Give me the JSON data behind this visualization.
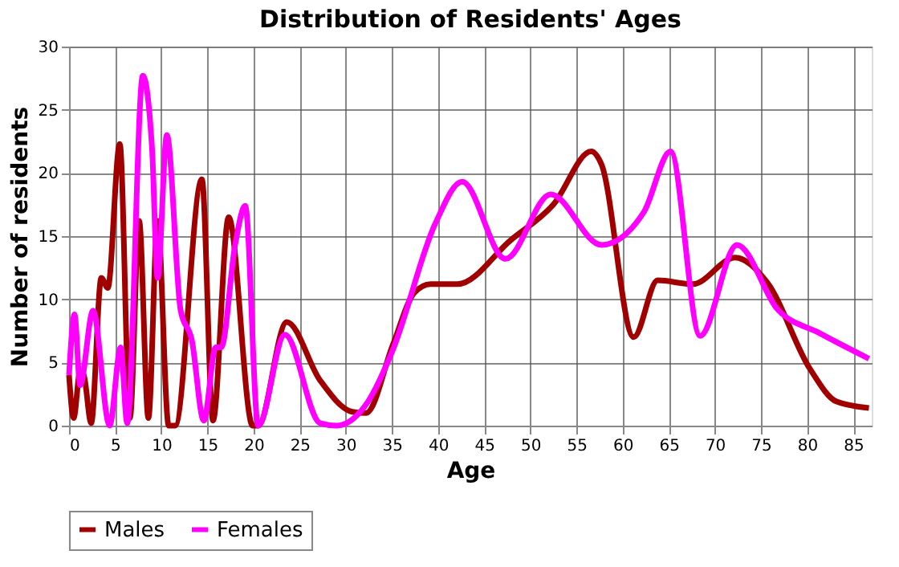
{
  "chart_data": {
    "type": "line",
    "title": "Distribution of Residents' Ages",
    "xlabel": "Age",
    "ylabel": "Number of residents",
    "xlim": [
      0,
      87
    ],
    "xticks": [
      0,
      5,
      10,
      15,
      20,
      25,
      30,
      35,
      40,
      45,
      50,
      55,
      60,
      65,
      70,
      75,
      80,
      85
    ],
    "ylim": [
      0,
      30
    ],
    "yticks": [
      0,
      5,
      10,
      15,
      20,
      25,
      30
    ],
    "grid": true,
    "legend": "bottom",
    "series": [
      {
        "name": "Males",
        "color": "#a00000",
        "x": [
          0,
          0.5,
          1.2,
          1.6,
          2.4,
          3.5,
          4.2,
          5.5,
          6.6,
          7.6,
          8.6,
          9.6,
          10.8,
          11.5,
          14.4,
          15.6,
          17.3,
          19.9,
          20.5,
          23.6,
          27.2,
          30.7,
          32.2,
          35.1,
          37.4,
          39.2,
          42.1,
          47.9,
          52.5,
          56.6,
          57.7,
          61.2,
          63.8,
          67.6,
          72.2,
          75.7,
          80.3,
          83.2,
          86.7
        ],
        "values": [
          4.0,
          0.6,
          4.3,
          4.0,
          0.2,
          11.7,
          10.9,
          22.3,
          0.6,
          16.2,
          0.6,
          16.2,
          0,
          0,
          19.5,
          0.4,
          16.5,
          0,
          0,
          8.2,
          3.6,
          1.1,
          1.0,
          6.4,
          10.5,
          11.2,
          11.2,
          14.7,
          17.5,
          21.7,
          20.7,
          7.0,
          11.5,
          11.2,
          13.3,
          11.3,
          4.5,
          1.9,
          1.4
        ]
      },
      {
        "name": "Females",
        "color": "#ff00ff",
        "x": [
          0,
          0.6,
          1.2,
          2.6,
          4.4,
          5.6,
          6.3,
          8.0,
          9.0,
          9.6,
          10.6,
          12.1,
          13.3,
          14.6,
          15.9,
          16.5,
          18.0,
          19.1,
          20.5,
          23.4,
          27.2,
          29.0,
          32.4,
          35.1,
          39.7,
          42.6,
          47.3,
          52.2,
          57.7,
          62.3,
          65.2,
          68.4,
          72.4,
          76.8,
          81.4,
          86.7
        ],
        "values": [
          4.0,
          8.8,
          3.2,
          9.1,
          0,
          6.2,
          0.2,
          27.7,
          21.9,
          11.7,
          23.0,
          9.1,
          6.8,
          0.4,
          6.2,
          6.2,
          14.3,
          17.4,
          0,
          7.2,
          0.2,
          0,
          1.9,
          6.0,
          16.0,
          19.3,
          13.2,
          18.3,
          14.3,
          16.9,
          21.7,
          7.1,
          14.3,
          9.2,
          7.3,
          5.3
        ]
      }
    ]
  }
}
